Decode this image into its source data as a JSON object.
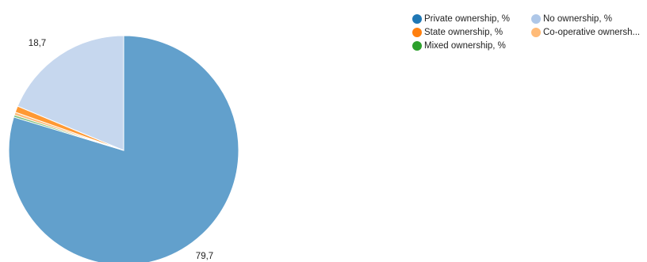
{
  "chart_data": {
    "type": "pie",
    "title": "",
    "slices": [
      {
        "name": "Private ownership, %",
        "value": 79.7,
        "label": "79,7",
        "color": "#62a0cc"
      },
      {
        "name": "Mixed ownership, %",
        "value": 0.3,
        "label": "",
        "color": "#7fbf7b"
      },
      {
        "name": "Co-operative ownersh...",
        "value": 0.4,
        "label": "",
        "color": "#ffbb78"
      },
      {
        "name": "State ownership, %",
        "value": 0.9,
        "label": "",
        "color": "#ff9933"
      },
      {
        "name": "No ownership, %",
        "value": 18.7,
        "label": "18,7",
        "color": "#c6d7ee"
      }
    ],
    "legend": {
      "position": "top-right",
      "rows": [
        [
          {
            "name": "Private ownership, %",
            "color": "#1f77b4"
          },
          {
            "name": "No ownership, %",
            "color": "#aec7e8"
          }
        ],
        [
          {
            "name": "State ownership, %",
            "color": "#ff7f0e"
          },
          {
            "name": "Co-operative ownersh...",
            "color": "#ffbb78"
          }
        ],
        [
          {
            "name": "Mixed ownership, %",
            "color": "#2ca02c"
          }
        ]
      ]
    }
  }
}
